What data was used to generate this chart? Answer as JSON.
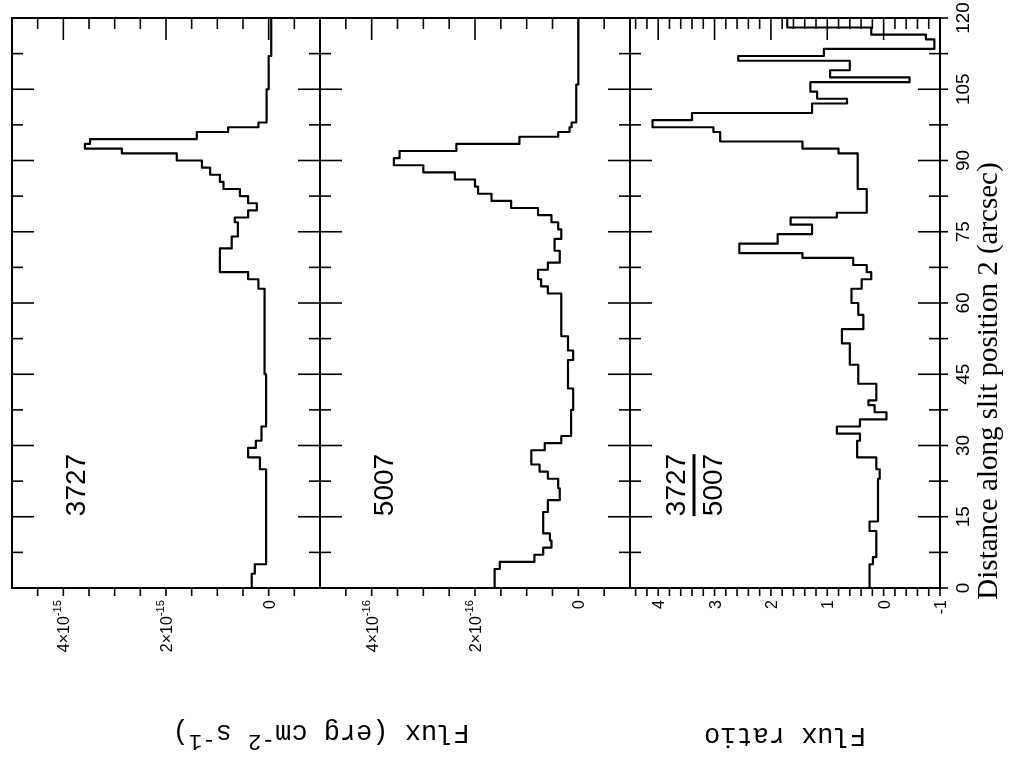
{
  "chart_data": [
    {
      "type": "line",
      "xlabel": "Flux (erg cm$^{-2}$ s$^{-1}$)",
      "annotations": [
        "3727"
      ],
      "tick_labels": "x",
      "color": "#000000",
      "xlim": [
        5e-15,
        -1e-15
      ],
      "xticks": [
        {
          "value": 4.5e-15,
          "label": null
        },
        {
          "value": 4e-15,
          "label": "4×10$^{-15}$"
        },
        {
          "value": 3.5e-15,
          "label": null
        },
        {
          "value": 3e-15,
          "label": null
        },
        {
          "value": 2.5e-15,
          "label": null
        },
        {
          "value": 2e-15,
          "label": "2×10$^{-15}$"
        },
        {
          "value": 1.5e-15,
          "label": null
        },
        {
          "value": 1e-15,
          "label": null
        },
        {
          "value": 5e-16,
          "label": null
        },
        0,
        {
          "value": -5e-16,
          "label": null
        }
      ],
      "ylim": [
        0,
        120
      ],
      "yticks": [
        0,
        {
          "value": 7.5,
          "label": null
        },
        15,
        {
          "value": 22.5,
          "label": null
        },
        30,
        {
          "value": 37.5,
          "label": null
        },
        45,
        {
          "value": 52.5,
          "label": null
        },
        60,
        {
          "value": 67.5,
          "label": null
        },
        75,
        {
          "value": 82.5,
          "label": null
        },
        90,
        {
          "value": 97.5,
          "label": null
        },
        105,
        {
          "value": 112.5,
          "label": null
        },
        120
      ],
      "x": [
        3.3e-16,
        3.3e-16,
        2.7e-16,
        2.7e-16,
        5e-17,
        5e-17,
        1.7e-16,
        1.7e-16,
        4e-16,
        4e-16,
        2.5e-16,
        2.5e-16,
        1.4e-16,
        1.4e-16,
        5e-17,
        5e-17,
        8e-17,
        8e-17,
        2e-16,
        2e-16,
        4e-16,
        4e-16,
        9.5e-16,
        9.5e-16,
        7.2e-16,
        7.2e-16,
        6e-16,
        6e-16,
        6.6e-16,
        6.6e-16,
        4e-16,
        4e-16,
        2.3e-16,
        2.3e-16,
        4e-16,
        4e-16,
        5.6e-16,
        5.6e-16,
        8.8e-16,
        8.8e-16,
        9.5e-16,
        9.5e-16,
        1.14e-15,
        1.14e-15,
        1.3e-15,
        1.3e-15,
        1.79e-15,
        1.79e-15,
        2.86e-15,
        2.86e-15,
        3.58e-15,
        3.58e-15,
        3.48e-15,
        3.48e-15,
        1.4e-15,
        1.4e-15,
        7.9e-16,
        7.9e-16,
        2e-16,
        2e-16,
        4e-17,
        4e-17,
        0,
        0,
        -5e-17,
        -5e-17
      ],
      "values": [
        0,
        3,
        3,
        5,
        5,
        25,
        25,
        27.5,
        27.5,
        29.5,
        29.5,
        31,
        31,
        34,
        34,
        45,
        45,
        63,
        63,
        65,
        65,
        66.5,
        66.5,
        71.5,
        71.5,
        74,
        74,
        77,
        77,
        78,
        78,
        79.5,
        79.5,
        81,
        81,
        82.5,
        82.5,
        84,
        84,
        85.5,
        85.5,
        87,
        87,
        88.5,
        88.5,
        90,
        90,
        91.5,
        91.5,
        92.5,
        92.5,
        93.5,
        93.5,
        94.5,
        94.5,
        96,
        96,
        97,
        97,
        98,
        98,
        105,
        105,
        112,
        112,
        120
      ]
    },
    {
      "type": "line",
      "annotations": [
        "5007"
      ],
      "tick_labels": "x",
      "color": "#000000",
      "xlim": [
        5e-16,
        -1e-16
      ],
      "xticks": [
        {
          "value": 4.5e-16,
          "label": null
        },
        {
          "value": 4e-16,
          "label": "4×10$^{-16}$"
        },
        {
          "value": 3.5e-16,
          "label": null
        },
        {
          "value": 3e-16,
          "label": null
        },
        {
          "value": 2.5e-16,
          "label": null
        },
        {
          "value": 2e-16,
          "label": "2×10$^{-16}$"
        },
        {
          "value": 1.5e-16,
          "label": null
        },
        {
          "value": 1e-16,
          "label": null
        },
        {
          "value": 5e-17,
          "label": null
        },
        0,
        {
          "value": -5e-17,
          "label": null
        }
      ],
      "ylim": [
        0,
        120
      ],
      "yticks": [
        0,
        {
          "value": 7.5,
          "label": null
        },
        15,
        {
          "value": 22.5,
          "label": null
        },
        30,
        {
          "value": 37.5,
          "label": null
        },
        45,
        {
          "value": 52.5,
          "label": null
        },
        60,
        {
          "value": 67.5,
          "label": null
        },
        75,
        {
          "value": 82.5,
          "label": null
        },
        90,
        {
          "value": 97.5,
          "label": null
        },
        105,
        {
          "value": 112.5,
          "label": null
        },
        120
      ],
      "x": [
        1.62e-16,
        1.62e-16,
        1.52e-16,
        1.52e-16,
        8.5e-17,
        8.5e-17,
        6.8e-17,
        6.8e-17,
        5.2e-17,
        5.2e-17,
        5.5e-17,
        5.5e-17,
        6.8e-17,
        6.8e-17,
        5.9e-17,
        5.9e-17,
        3.6e-17,
        3.6e-17,
        3.9e-17,
        3.9e-17,
        5.9e-17,
        5.9e-17,
        7.5e-17,
        7.5e-17,
        9.1e-17,
        9.1e-17,
        6.5e-17,
        6.5e-17,
        3.3e-17,
        3.3e-17,
        1.4e-17,
        1.4e-17,
        1e-17,
        1e-17,
        2e-17,
        2e-17,
        1e-17,
        1e-17,
        2e-17,
        2e-17,
        3.3e-17,
        3.3e-17,
        5.9e-17,
        5.9e-17,
        7.2e-17,
        7.2e-17,
        7.8e-17,
        7.8e-17,
        5.9e-17,
        5.9e-17,
        3.6e-17,
        3.6e-17,
        4.6e-17,
        4.6e-17,
        3.3e-17,
        3.3e-17,
        3.9e-17,
        3.9e-17,
        5.2e-17,
        5.2e-17,
        7.8e-17,
        7.8e-17,
        1.3e-16,
        1.3e-16,
        1.68e-16,
        1.68e-16,
        1.94e-16,
        1.94e-16,
        2e-16,
        2e-16,
        2.39e-16,
        2.39e-16,
        3e-16,
        3e-16,
        3.57e-16,
        3.57e-16,
        3.46e-16,
        3.46e-16,
        2.36e-16,
        2.36e-16,
        1.14e-16,
        1.14e-16,
        3.9e-17,
        3.9e-17,
        1.7e-17,
        1.7e-17,
        1.3e-17,
        1.3e-17,
        4e-18,
        4e-18,
        0,
        0
      ],
      "values": [
        0,
        4,
        4,
        5.5,
        5.5,
        7,
        7,
        8.5,
        8.5,
        10,
        10,
        11.5,
        11.5,
        16,
        16,
        18.5,
        18.5,
        21,
        21,
        23,
        23,
        24.5,
        24.5,
        26,
        26,
        29,
        29,
        30.5,
        30.5,
        32,
        32,
        37.5,
        37.5,
        42,
        42,
        48,
        48,
        50,
        50,
        53,
        53,
        62,
        62,
        63.5,
        63.5,
        65,
        65,
        67,
        67,
        68.5,
        68.5,
        71,
        71,
        73.5,
        73.5,
        75.5,
        75.5,
        77,
        77,
        78.5,
        78.5,
        80,
        80,
        81.5,
        81.5,
        83,
        83,
        84.5,
        84.5,
        86,
        86,
        87.5,
        87.5,
        89,
        89,
        90.5,
        90.5,
        92,
        92,
        93.5,
        93.5,
        95,
        95,
        96,
        96,
        97,
        97,
        98,
        98,
        106,
        106,
        120
      ]
    },
    {
      "type": "line",
      "xlabel": "Flux ratio",
      "ylabel": "Distance along slit position 2 (arcsec)",
      "annotations": [
        "3727",
        "5007"
      ],
      "color": "#000000",
      "xlim": [
        4.5,
        -1
      ],
      "xticks": [
        {
          "value": 4.4,
          "label": null
        },
        {
          "value": 4.2,
          "label": null
        },
        4,
        {
          "value": 3.8,
          "label": null
        },
        {
          "value": 3.6,
          "label": null
        },
        {
          "value": 3.4,
          "label": null
        },
        {
          "value": 3.2,
          "label": null
        },
        3,
        {
          "value": 2.8,
          "label": null
        },
        {
          "value": 2.6,
          "label": null
        },
        {
          "value": 2.4,
          "label": null
        },
        {
          "value": 2.2,
          "label": null
        },
        2,
        {
          "value": 1.8,
          "label": null
        },
        {
          "value": 1.6,
          "label": null
        },
        {
          "value": 1.4,
          "label": null
        },
        {
          "value": 1.2,
          "label": null
        },
        1,
        {
          "value": 0.8,
          "label": null
        },
        {
          "value": 0.6,
          "label": null
        },
        {
          "value": 0.4,
          "label": null
        },
        {
          "value": 0.2,
          "label": null
        },
        0,
        {
          "value": -0.2,
          "label": null
        },
        {
          "value": -0.4,
          "label": null
        },
        {
          "value": -0.6,
          "label": null
        },
        {
          "value": -0.8,
          "label": null
        },
        -1
      ],
      "ylim": [
        0,
        120
      ],
      "yticks": [
        0,
        {
          "value": 7.5,
          "label": null
        },
        15,
        {
          "value": 22.5,
          "label": null
        },
        30,
        {
          "value": 37.5,
          "label": null
        },
        45,
        {
          "value": 52.5,
          "label": null
        },
        60,
        {
          "value": 67.5,
          "label": null
        },
        75,
        {
          "value": 82.5,
          "label": null
        },
        90,
        {
          "value": 97.5,
          "label": null
        },
        105,
        {
          "value": 112.5,
          "label": null
        },
        120
      ],
      "x": [
        0.25,
        0.25,
        0.19,
        0.19,
        0.13,
        0.13,
        0.25,
        0.25,
        0.1,
        0.1,
        0.07,
        0.07,
        0.13,
        0.13,
        0.47,
        0.47,
        0.42,
        0.42,
        0.83,
        0.83,
        0.42,
        0.42,
        -0.05,
        -0.05,
        0.16,
        0.16,
        0.27,
        0.27,
        0.13,
        0.13,
        0.45,
        0.45,
        0.6,
        0.6,
        0.74,
        0.74,
        0.36,
        0.36,
        0.45,
        0.45,
        0.57,
        0.57,
        0.39,
        0.39,
        0.22,
        0.22,
        0.3,
        0.3,
        0.54,
        0.54,
        1.44,
        1.44,
        2.56,
        2.56,
        1.88,
        1.88,
        1.27,
        1.27,
        1.65,
        1.65,
        0.83,
        0.83,
        0.3,
        0.3,
        0.46,
        0.46,
        0.8,
        0.8,
        1.44,
        1.44,
        2.9,
        2.9,
        3.02,
        3.02,
        4.1,
        4.1,
        3.4,
        3.4,
        1.27,
        1.27,
        0.65,
        0.65,
        1.18,
        1.18,
        1.3,
        1.3,
        -0.46,
        -0.46,
        0.95,
        0.95,
        0.6,
        0.6,
        2.58,
        2.58,
        1.06,
        1.06,
        -0.9,
        -0.9,
        -0.75,
        -0.75,
        0.22,
        0.22,
        1.71,
        1.71
      ],
      "values": [
        0,
        5,
        5,
        6.5,
        6.5,
        12,
        12,
        14,
        14,
        23,
        23,
        25,
        25,
        27.5,
        27.5,
        31,
        31,
        32.5,
        32.5,
        34,
        34,
        35.5,
        35.5,
        37,
        37,
        38.5,
        38.5,
        39.5,
        39.5,
        43,
        43,
        47,
        47,
        51.5,
        51.5,
        54.5,
        54.5,
        57.5,
        57.5,
        60,
        60,
        63,
        63,
        65,
        65,
        66.5,
        66.5,
        68,
        68,
        69.5,
        69.5,
        70.5,
        70.5,
        72.5,
        72.5,
        74.5,
        74.5,
        76.5,
        76.5,
        78,
        78,
        79,
        79,
        84,
        84,
        91.5,
        91.5,
        92.5,
        92.5,
        94,
        94,
        96,
        96,
        97,
        97,
        98.5,
        98.5,
        100,
        100,
        102,
        102,
        103,
        103,
        104.5,
        104.5,
        106.5,
        106.5,
        107.5,
        107.5,
        109,
        109,
        111,
        111,
        112,
        112,
        113.5,
        113.5,
        115.5,
        115.5,
        116.5,
        116.5,
        118,
        118,
        120
      ]
    }
  ]
}
